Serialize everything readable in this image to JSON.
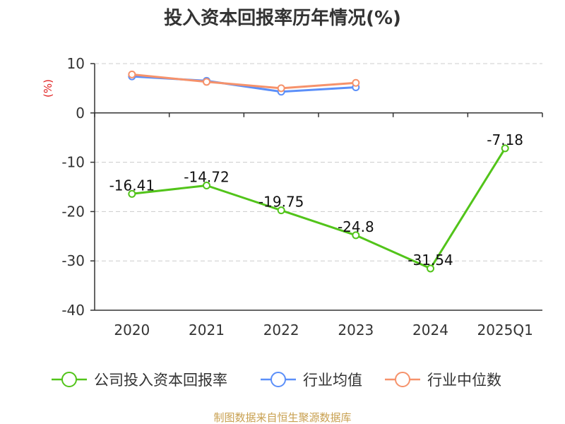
{
  "title": "投入资本回报率历年情况(%)",
  "source_note": "制图数据来自恒生聚源数据库",
  "chart_data": {
    "type": "line",
    "title": "投入资本回报率历年情况(%)",
    "ylabel": "(%)",
    "categories": [
      "2020",
      "2021",
      "2022",
      "2023",
      "2024",
      "2025Q1"
    ],
    "ylim": [
      -40,
      10
    ],
    "yticks": [
      10,
      0,
      -10,
      -20,
      -30,
      -40
    ],
    "grid": true,
    "legend_position": "bottom",
    "series": [
      {
        "name": "公司投入资本回报率",
        "color": "#52c41a",
        "values": [
          -16.41,
          -14.72,
          -19.75,
          -24.8,
          -31.54,
          -7.18
        ],
        "data_labels": [
          "-16.41",
          "-14.72",
          "-19.75",
          "-24.8",
          "-31.54",
          "-7.18"
        ]
      },
      {
        "name": "行业均值",
        "color": "#5b8ff9",
        "values": [
          7.4,
          6.5,
          4.3,
          5.2,
          null,
          null
        ]
      },
      {
        "name": "行业中位数",
        "color": "#f6926b",
        "values": [
          7.8,
          6.3,
          5.0,
          6.1,
          null,
          null
        ]
      }
    ]
  }
}
